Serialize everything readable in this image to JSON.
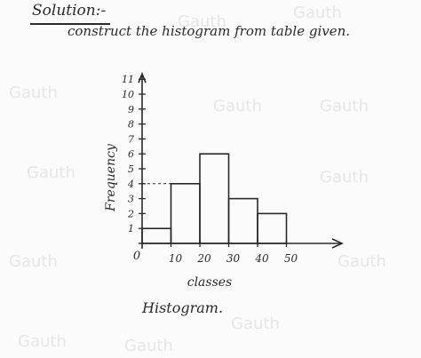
{
  "heading": "Solution:-",
  "subtitle": "construct the histogram from table given.",
  "caption": "Histogram.",
  "watermark": "Gauth",
  "chart_data": {
    "type": "bar",
    "title": "",
    "xlabel": "classes",
    "ylabel": "Frequency",
    "origin_label": "0",
    "x_ticks": [
      "10",
      "20",
      "30",
      "40",
      "50"
    ],
    "y_ticks": [
      "1",
      "2",
      "3",
      "4",
      "5",
      "6",
      "7",
      "8",
      "9",
      "10",
      "11"
    ],
    "bins": [
      {
        "from": 0,
        "to": 10,
        "value": 1
      },
      {
        "from": 10,
        "to": 20,
        "value": 4
      },
      {
        "from": 20,
        "to": 30,
        "value": 6
      },
      {
        "from": 30,
        "to": 40,
        "value": 3
      },
      {
        "from": 40,
        "to": 50,
        "value": 2
      }
    ],
    "xlim": [
      0,
      50
    ],
    "ylim": [
      0,
      11
    ],
    "grid": false,
    "dashed_guides": [
      4
    ]
  }
}
